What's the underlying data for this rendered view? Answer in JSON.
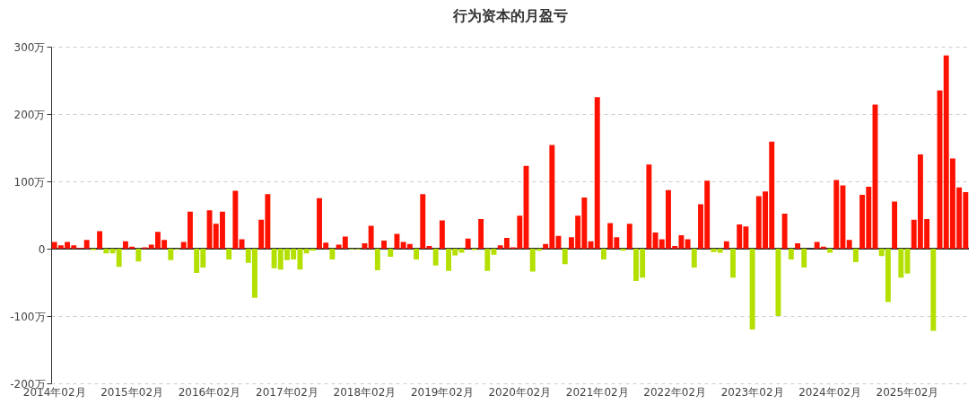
{
  "chart_data": {
    "type": "bar",
    "title": "行为资本的月盈亏",
    "categories": [
      "2014年02月",
      null,
      null,
      null,
      null,
      null,
      null,
      null,
      null,
      null,
      null,
      null,
      "2015年02月",
      null,
      null,
      null,
      null,
      null,
      null,
      null,
      null,
      null,
      null,
      null,
      "2016年02月",
      null,
      null,
      null,
      null,
      null,
      null,
      null,
      null,
      null,
      null,
      null,
      "2017年02月",
      null,
      null,
      null,
      null,
      null,
      null,
      null,
      null,
      null,
      null,
      null,
      "2018年02月",
      null,
      null,
      null,
      null,
      null,
      null,
      null,
      null,
      null,
      null,
      null,
      "2019年02月",
      null,
      null,
      null,
      null,
      null,
      null,
      null,
      null,
      null,
      null,
      null,
      "2020年02月",
      null,
      null,
      null,
      null,
      null,
      null,
      null,
      null,
      null,
      null,
      null,
      "2021年02月",
      null,
      null,
      null,
      null,
      null,
      null,
      null,
      null,
      null,
      null,
      null,
      "2022年02月",
      null,
      null,
      null,
      null,
      null,
      null,
      null,
      null,
      null,
      null,
      null,
      "2023年02月",
      null,
      null,
      null,
      null,
      null,
      null,
      null,
      null,
      null,
      null,
      null,
      "2024年02月",
      null,
      null,
      null,
      null,
      null,
      null,
      null,
      null,
      null,
      null,
      null,
      "2025年02月",
      null,
      null,
      null,
      null,
      null,
      null,
      null,
      null,
      null
    ],
    "values": [
      10,
      5,
      10,
      5,
      1,
      13,
      -2,
      26,
      -7,
      -7,
      -27,
      11,
      3,
      -19,
      2,
      6,
      25,
      13,
      -17,
      -1,
      10,
      55,
      -36,
      -28,
      57,
      37,
      55,
      -16,
      86,
      14,
      -21,
      -73,
      43,
      81,
      -29,
      -31,
      -17,
      -16,
      -31,
      -7,
      -3,
      75,
      9,
      -16,
      6,
      18,
      -1,
      -1,
      8,
      34,
      -32,
      12,
      -12,
      22,
      10,
      7,
      -16,
      81,
      4,
      -25,
      42,
      -33,
      -10,
      -6,
      15,
      -2,
      44,
      -33,
      -9,
      5,
      16,
      2,
      49,
      123,
      -34,
      -3,
      7,
      154,
      19,
      -23,
      17,
      49,
      76,
      11,
      225,
      -16,
      38,
      17,
      -3,
      37,
      -48,
      -43,
      125,
      24,
      14,
      87,
      4,
      20,
      14,
      -28,
      66,
      101,
      -5,
      -6,
      11,
      -43,
      36,
      33,
      -120,
      78,
      85,
      159,
      -100,
      52,
      -16,
      8,
      -28,
      0,
      10,
      3,
      -6,
      102,
      94,
      13,
      -20,
      80,
      92,
      214,
      -11,
      -79,
      70,
      -43,
      -37,
      43,
      140,
      44,
      -122,
      235,
      287,
      134,
      91,
      84
    ],
    "colors": [
      "#ff1100",
      "#ff1100",
      "#ff1100",
      "#ff1100",
      "#ff1100",
      "#ff1100",
      "#b3e000",
      "#ff1100",
      "#b3e000",
      "#b3e000",
      "#b3e000",
      "#ff1100",
      "#ff1100",
      "#b3e000",
      "#ff1100",
      "#ff1100",
      "#ff1100",
      "#ff1100",
      "#b3e000",
      "#b3e000",
      "#ff1100",
      "#ff1100",
      "#b3e000",
      "#b3e000",
      "#ff1100",
      "#ff1100",
      "#ff1100",
      "#b3e000",
      "#ff1100",
      "#ff1100",
      "#b3e000",
      "#b3e000",
      "#ff1100",
      "#ff1100",
      "#b3e000",
      "#b3e000",
      "#b3e000",
      "#b3e000",
      "#b3e000",
      "#b3e000",
      "#b3e000",
      "#ff1100",
      "#ff1100",
      "#b3e000",
      "#ff1100",
      "#ff1100",
      "#b3e000",
      "#b3e000",
      "#ff1100",
      "#ff1100",
      "#b3e000",
      "#ff1100",
      "#b3e000",
      "#ff1100",
      "#ff1100",
      "#ff1100",
      "#b3e000",
      "#ff1100",
      "#ff1100",
      "#b3e000",
      "#ff1100",
      "#b3e000",
      "#b3e000",
      "#b3e000",
      "#ff1100",
      "#b3e000",
      "#ff1100",
      "#b3e000",
      "#b3e000",
      "#ff1100",
      "#ff1100",
      "#ff1100",
      "#ff1100",
      "#ff1100",
      "#b3e000",
      "#b3e000",
      "#ff1100",
      "#ff1100",
      "#ff1100",
      "#b3e000",
      "#ff1100",
      "#ff1100",
      "#ff1100",
      "#ff1100",
      "#ff1100",
      "#b3e000",
      "#ff1100",
      "#ff1100",
      "#b3e000",
      "#ff1100",
      "#b3e000",
      "#b3e000",
      "#ff1100",
      "#ff1100",
      "#ff1100",
      "#ff1100",
      "#ff1100",
      "#ff1100",
      "#ff1100",
      "#b3e000",
      "#ff1100",
      "#ff1100",
      "#b3e000",
      "#b3e000",
      "#ff1100",
      "#b3e000",
      "#ff1100",
      "#ff1100",
      "#b3e000",
      "#ff1100",
      "#ff1100",
      "#ff1100",
      "#b3e000",
      "#ff1100",
      "#b3e000",
      "#ff1100",
      "#b3e000",
      "#ff1100",
      "#ff1100",
      "#ff1100",
      "#b3e000",
      "#ff1100",
      "#ff1100",
      "#ff1100",
      "#b3e000",
      "#ff1100",
      "#ff1100",
      "#ff1100",
      "#b3e000",
      "#b3e000",
      "#ff1100",
      "#b3e000",
      "#b3e000",
      "#ff1100",
      "#ff1100",
      "#ff1100",
      "#b3e000",
      "#ff1100",
      "#ff1100",
      "#ff1100",
      "#ff1100",
      "#ff1100"
    ],
    "ylim": [
      -200,
      300
    ],
    "yticks": [
      {
        "value": -200,
        "label": "-200万"
      },
      {
        "value": -100,
        "label": "-100万"
      },
      0,
      {
        "value": 100,
        "label": "100万"
      },
      {
        "value": 200,
        "label": "200万"
      },
      {
        "value": 300,
        "label": "300万"
      }
    ],
    "grid": "y"
  }
}
